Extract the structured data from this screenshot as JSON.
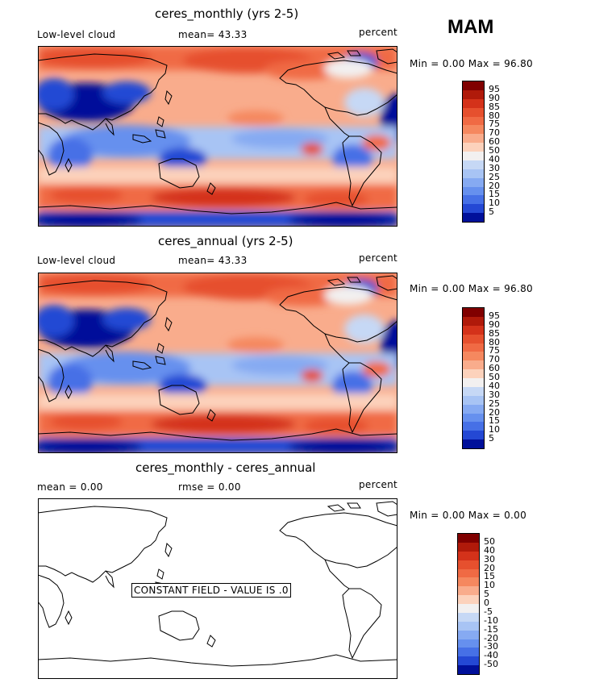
{
  "season": "MAM",
  "panels": [
    {
      "title": "ceres_monthly (yrs 2-5)",
      "variable": "Low-level cloud",
      "stat": "mean=  43.33",
      "units": "percent",
      "minmax": "Min =    0.00 Max =   96.80",
      "colorbar_levels": [
        "95",
        "90",
        "85",
        "80",
        "75",
        "70",
        "60",
        "50",
        "40",
        "30",
        "25",
        "20",
        "15",
        "10",
        "5"
      ]
    },
    {
      "title": "ceres_annual (yrs 2-5)",
      "variable": "Low-level cloud",
      "stat": "mean=  43.33",
      "units": "percent",
      "minmax": "Min =    0.00 Max =   96.80",
      "colorbar_levels": [
        "95",
        "90",
        "85",
        "80",
        "75",
        "70",
        "60",
        "50",
        "40",
        "30",
        "25",
        "20",
        "15",
        "10",
        "5"
      ]
    },
    {
      "title": "ceres_monthly - ceres_annual",
      "mean": "mean =    0.00",
      "rmse": "rmse =    0.00",
      "units": "percent",
      "minmax": "Min =    0.00 Max =    0.00",
      "constant_label": "CONSTANT FIELD - VALUE IS .0",
      "colorbar_levels": [
        "50",
        "40",
        "30",
        "20",
        "15",
        "10",
        "5",
        "0",
        "-5",
        "-10",
        "-15",
        "-20",
        "-30",
        "-40",
        "-50"
      ]
    }
  ],
  "colors": {
    "scale16": [
      "#800000",
      "#b01a0a",
      "#d4321a",
      "#e6502e",
      "#f06a44",
      "#f5885f",
      "#f9ac8c",
      "#fcd2bc",
      "#f2f0f0",
      "#c6d8f5",
      "#a8c4f4",
      "#86aaf2",
      "#6690ee",
      "#4670e6",
      "#2448d4",
      "#00109a"
    ]
  },
  "chart_data": [
    {
      "type": "heatmap",
      "title": "ceres_monthly (yrs 2-5)",
      "subtitle": "Low-level cloud",
      "mean": 43.33,
      "units": "percent",
      "min": 0.0,
      "max": 96.8,
      "levels": [
        5,
        10,
        15,
        20,
        25,
        30,
        40,
        50,
        60,
        70,
        75,
        80,
        85,
        90,
        95
      ]
    },
    {
      "type": "heatmap",
      "title": "ceres_annual (yrs 2-5)",
      "subtitle": "Low-level cloud",
      "mean": 43.33,
      "units": "percent",
      "min": 0.0,
      "max": 96.8,
      "levels": [
        5,
        10,
        15,
        20,
        25,
        30,
        40,
        50,
        60,
        70,
        75,
        80,
        85,
        90,
        95
      ]
    },
    {
      "type": "heatmap",
      "title": "ceres_monthly - ceres_annual",
      "mean": 0.0,
      "rmse": 0.0,
      "units": "percent",
      "min": 0.0,
      "max": 0.0,
      "levels": [
        -50,
        -40,
        -30,
        -20,
        -15,
        -10,
        -5,
        0,
        5,
        10,
        15,
        20,
        30,
        40,
        50
      ],
      "note": "CONSTANT FIELD - VALUE IS .0"
    }
  ]
}
